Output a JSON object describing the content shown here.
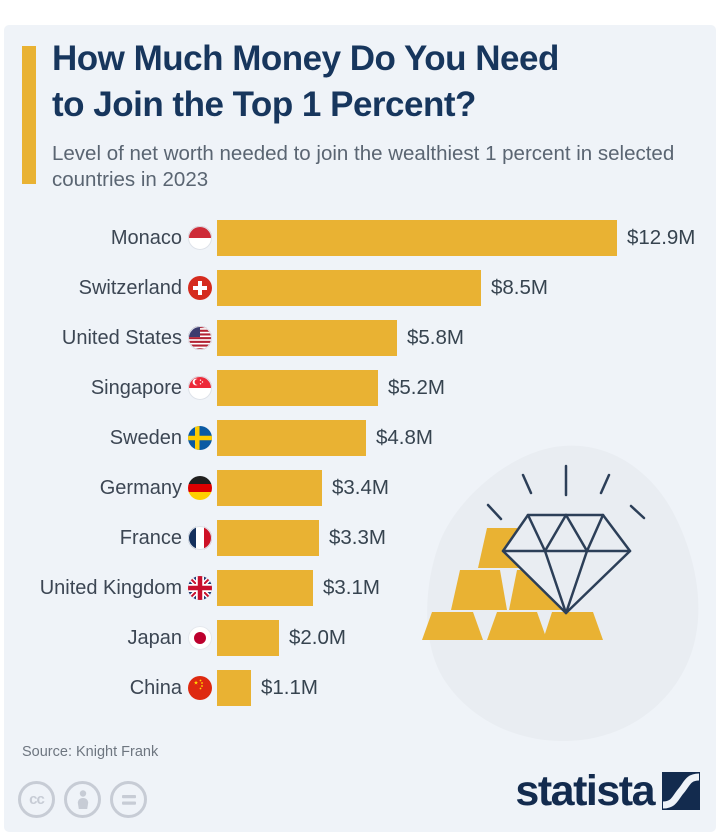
{
  "colors": {
    "card_background": "#EFF3F8",
    "page_background": "#FFFFFF",
    "gold": "#E9B233",
    "title_navy": "#17365D",
    "subtitle_gray": "#5A6572",
    "label_gray": "#3C4653",
    "line_navy": "#2C3F58",
    "brand_navy": "#132B4E"
  },
  "header": {
    "title_line1": "How Much Money Do You Need",
    "title_line2": "to Join the Top 1 Percent?",
    "subtitle": "Level of net worth needed to join the wealthiest 1 percent in selected countries in 2023"
  },
  "chart_data": {
    "type": "bar",
    "orientation": "horizontal",
    "title": "How Much Money Do You Need to Join the Top 1 Percent?",
    "subtitle": "Level of net worth needed to join the wealthiest 1 percent in selected countries in 2023",
    "unit": "USD millions",
    "xlim": [
      0,
      13.5
    ],
    "grid": false,
    "legend": "none",
    "bar_color": "#E9B233",
    "categories": [
      "Monaco",
      "Switzerland",
      "United States",
      "Singapore",
      "Sweden",
      "Germany",
      "France",
      "United Kingdom",
      "Japan",
      "China"
    ],
    "values": [
      12.9,
      8.5,
      5.8,
      5.2,
      4.8,
      3.4,
      3.3,
      3.1,
      2.0,
      1.1
    ],
    "value_labels": [
      "$12.9M",
      "$8.5M",
      "$5.8M",
      "$5.2M",
      "$4.8M",
      "$3.4M",
      "$3.3M",
      "$3.1M",
      "$2.0M",
      "$1.1M"
    ],
    "flags": [
      "monaco",
      "switzerland",
      "united-states",
      "singapore",
      "sweden",
      "germany",
      "france",
      "united-kingdom",
      "japan",
      "china"
    ]
  },
  "illustration": {
    "name": "diamond-and-gold-bars",
    "gold": "#E9B233",
    "line_color": "#2C3F58",
    "blob_color": "#E9EDF2"
  },
  "footer": {
    "source": "Source: Knight Frank",
    "license_icons": [
      "cc-icon",
      "attribution-person-icon",
      "equals-icon"
    ],
    "brand_wordmark": "statista"
  }
}
